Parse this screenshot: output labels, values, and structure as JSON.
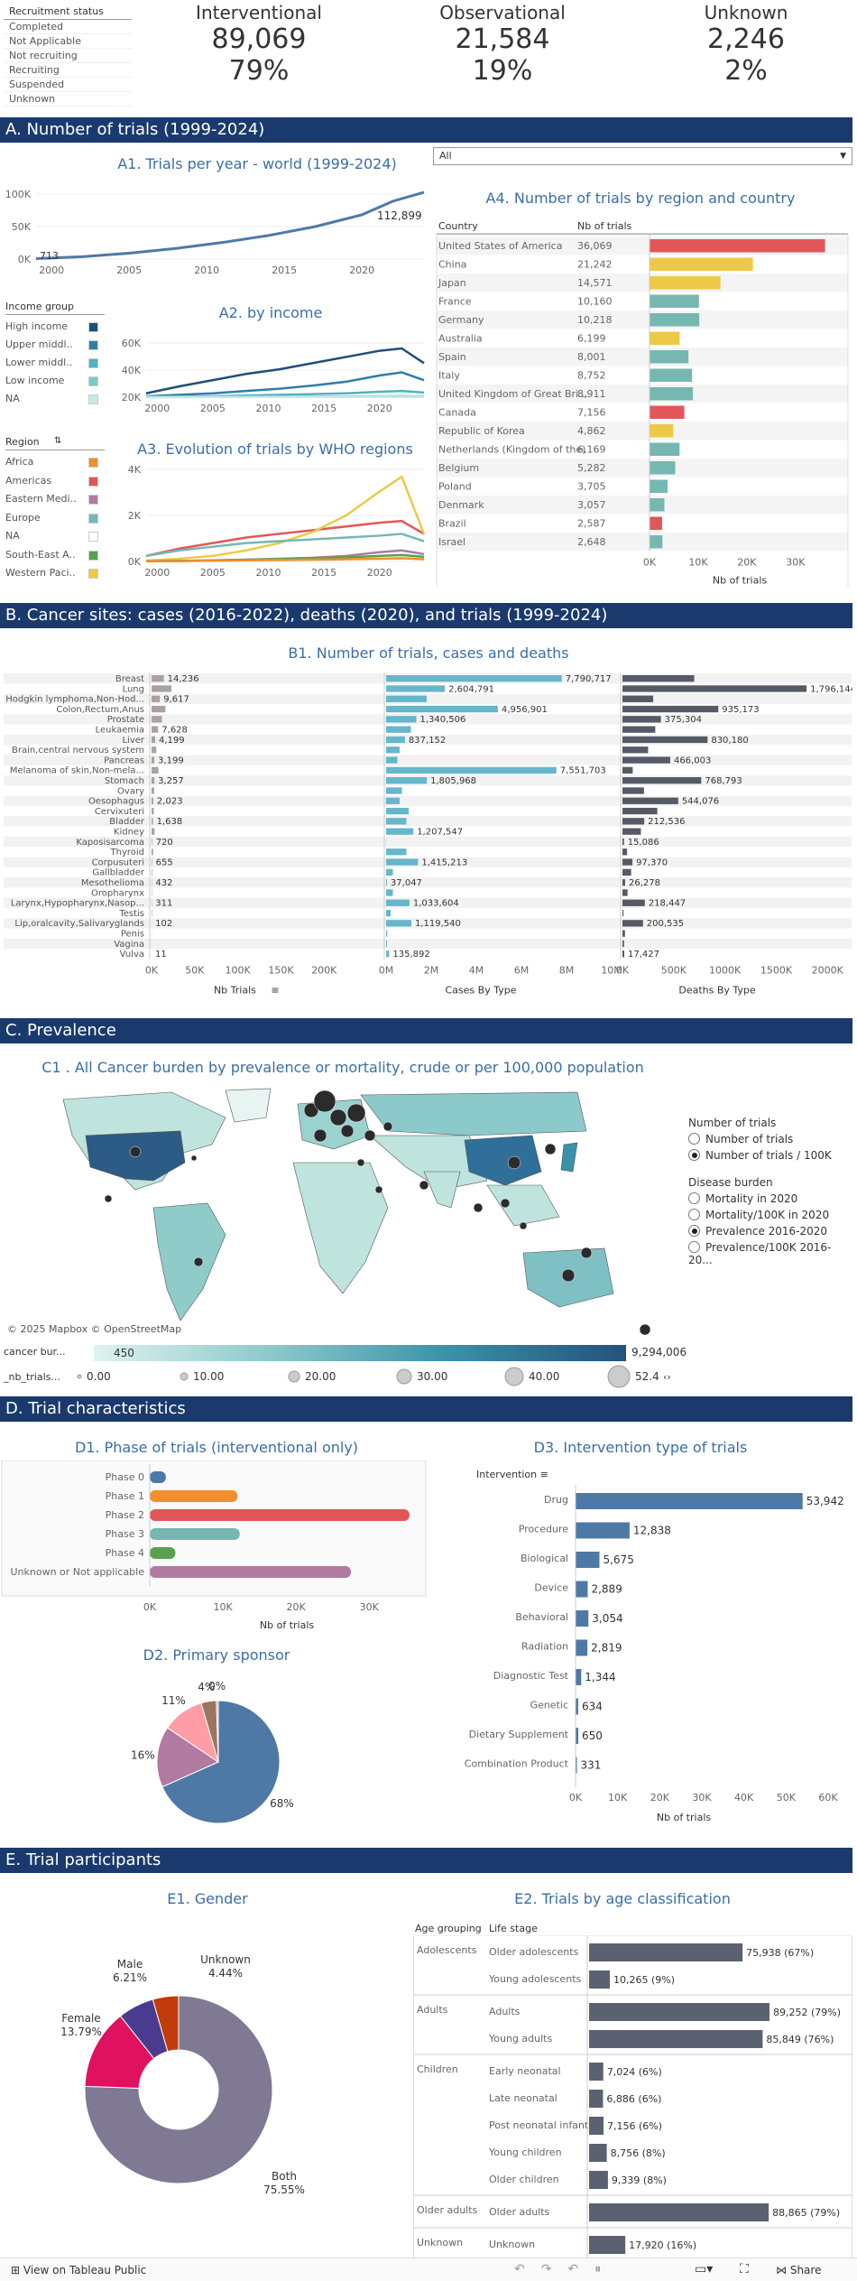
{
  "recruitment": {
    "header": "Recruitment status",
    "items": [
      "Completed",
      "Not Applicable",
      "Not recruiting",
      "Recruiting",
      "Suspended",
      "Unknown"
    ]
  },
  "kpis": [
    {
      "label": "Interventional",
      "count": "89,069",
      "pct": "79%"
    },
    {
      "label": "Observational",
      "count": "21,584",
      "pct": "19%"
    },
    {
      "label": "Unknown",
      "count": "2,246",
      "pct": "2%"
    }
  ],
  "sections": {
    "a": "A. Number of trials (1999-2024)",
    "b": "B. Cancer sites: cases (2016-2022), deaths (2020), and trials (1999-2024)",
    "c": "C. Prevalence",
    "d": "D. Trial characteristics",
    "e": "E. Trial participants"
  },
  "a1": {
    "title": "A1. Trials per year - world (1999-2024)",
    "yticks": [
      "100K",
      "50K",
      "0K"
    ],
    "xticks": [
      "2000",
      "2005",
      "2010",
      "2015",
      "2020"
    ],
    "start_label": "713",
    "end_label": "112,899",
    "chart_data": {
      "type": "line",
      "x": [
        1999,
        2002,
        2005,
        2008,
        2011,
        2014,
        2017,
        2020,
        2022,
        2024
      ],
      "values": [
        713,
        4000,
        10000,
        18000,
        28000,
        40000,
        55000,
        75000,
        98000,
        112899
      ],
      "ylim": [
        0,
        110000
      ]
    }
  },
  "a2": {
    "title": "A2. by income",
    "yticks": [
      "60K",
      "40K",
      "20K"
    ],
    "xticks": [
      "2000",
      "2005",
      "2010",
      "2015",
      "2020"
    ],
    "chart_data": {
      "type": "line",
      "x": [
        1999,
        2002,
        2005,
        2008,
        2011,
        2014,
        2017,
        2020,
        2022,
        2024
      ],
      "series": [
        {
          "name": "High income",
          "color": "#1f4e79",
          "values": [
            5000,
            14000,
            22000,
            30000,
            36000,
            44000,
            52000,
            60000,
            63000,
            44000
          ]
        },
        {
          "name": "Upper middl..",
          "color": "#2e7fa8",
          "values": [
            1000,
            3000,
            5000,
            8000,
            11000,
            15000,
            20000,
            28000,
            32000,
            22000
          ]
        },
        {
          "name": "Lower middl..",
          "color": "#4fb3c0",
          "values": [
            200,
            600,
            1200,
            2000,
            3000,
            4000,
            5000,
            7000,
            8000,
            6000
          ]
        },
        {
          "name": "Low income",
          "color": "#7cc7c9",
          "values": [
            100,
            200,
            300,
            400,
            600,
            700,
            900,
            1100,
            1300,
            900
          ]
        },
        {
          "name": "NA",
          "color": "#c9e8e6",
          "values": [
            50,
            100,
            150,
            200,
            250,
            300,
            350,
            400,
            450,
            300
          ]
        }
      ],
      "ylim": [
        0,
        70000
      ]
    }
  },
  "income_legend": {
    "title": "Income group",
    "items": [
      {
        "name": "High income",
        "color": "#1f4e79"
      },
      {
        "name": "Upper middl..",
        "color": "#2e7fa8"
      },
      {
        "name": "Lower middl..",
        "color": "#4fb3c0"
      },
      {
        "name": "Low income",
        "color": "#7cc7c9"
      },
      {
        "name": "NA",
        "color": "#c9e8e6"
      }
    ]
  },
  "a3": {
    "title": "A3. Evolution of trials by WHO regions",
    "yticks": [
      "4K",
      "2K",
      "0K"
    ],
    "xticks": [
      "2000",
      "2005",
      "2010",
      "2015",
      "2020"
    ],
    "chart_data": {
      "type": "line",
      "x": [
        1999,
        2002,
        2005,
        2008,
        2011,
        2014,
        2017,
        2020,
        2022,
        2024
      ],
      "series": [
        {
          "name": "Americas",
          "color": "#e15759",
          "values": [
            300,
            700,
            1000,
            1300,
            1500,
            1700,
            1900,
            2100,
            2200,
            1500
          ]
        },
        {
          "name": "Western Paci..",
          "color": "#edc948",
          "values": [
            50,
            150,
            300,
            600,
            1000,
            1600,
            2500,
            3800,
            4600,
            1500
          ]
        },
        {
          "name": "Europe",
          "color": "#76b7b2",
          "values": [
            300,
            600,
            800,
            1000,
            1100,
            1200,
            1300,
            1400,
            1500,
            1100
          ]
        },
        {
          "name": "Eastern Medi..",
          "color": "#b07aa1",
          "values": [
            10,
            30,
            60,
            100,
            150,
            200,
            300,
            500,
            600,
            400
          ]
        },
        {
          "name": "South-East A..",
          "color": "#59a14f",
          "values": [
            10,
            30,
            50,
            90,
            130,
            170,
            220,
            300,
            350,
            250
          ]
        },
        {
          "name": "Africa",
          "color": "#f28e2b",
          "values": [
            5,
            20,
            40,
            60,
            80,
            100,
            120,
            150,
            170,
            120
          ]
        }
      ],
      "ylim": [
        0,
        5000
      ]
    }
  },
  "region_legend": {
    "title": "Region",
    "items": [
      {
        "name": "Africa",
        "color": "#f28e2b"
      },
      {
        "name": "Americas",
        "color": "#e15759"
      },
      {
        "name": "Eastern Medi..",
        "color": "#b07aa1"
      },
      {
        "name": "Europe",
        "color": "#76b7b2"
      },
      {
        "name": "NA",
        "color": "#ffffff"
      },
      {
        "name": "South-East A..",
        "color": "#59a14f"
      },
      {
        "name": "Western Paci..",
        "color": "#edc948"
      }
    ]
  },
  "a4": {
    "filter": "All",
    "title": "A4. Number of trials by region and country",
    "col_country": "Country",
    "col_nb": "Nb of trials",
    "xlabel": "Nb of trials",
    "xticks": [
      "0K",
      "10K",
      "20K",
      "30K"
    ],
    "chart_data": {
      "type": "bar",
      "categories": [
        "United States of America",
        "China",
        "Japan",
        "France",
        "Germany",
        "Australia",
        "Spain",
        "Italy",
        "United Kingdom of Great Bri...",
        "Canada",
        "Republic of Korea",
        "Netherlands (Kingdom of the)",
        "Belgium",
        "Poland",
        "Denmark",
        "Brazil",
        "Israel"
      ],
      "values": [
        36069,
        21242,
        14571,
        10160,
        10218,
        6199,
        8001,
        8752,
        8911,
        7156,
        4862,
        6169,
        5282,
        3705,
        3057,
        2587,
        2648
      ],
      "labels": [
        "36,069",
        "21,242",
        "14,571",
        "10,160",
        "10,218",
        "6,199",
        "8,001",
        "8,752",
        "8,911",
        "7,156",
        "4,862",
        "6,169",
        "5,282",
        "3,705",
        "3,057",
        "2,587",
        "2,648"
      ],
      "colors": [
        "#e15759",
        "#edc948",
        "#edc948",
        "#76b7b2",
        "#76b7b2",
        "#edc948",
        "#76b7b2",
        "#76b7b2",
        "#76b7b2",
        "#e15759",
        "#edc948",
        "#76b7b2",
        "#76b7b2",
        "#76b7b2",
        "#76b7b2",
        "#e15759",
        "#76b7b2"
      ],
      "xlim": [
        0,
        38000
      ]
    }
  },
  "b1": {
    "title": "B1. Number of trials, cases and deaths",
    "xl1": "Nb Trials",
    "xl2": "Cases By Type",
    "xl3": "Deaths By Type",
    "xt1": [
      "0K",
      "50K",
      "100K",
      "150K",
      "200K"
    ],
    "xt2": [
      "0M",
      "2M",
      "4M",
      "6M",
      "8M",
      "10M"
    ],
    "xt3": [
      "0K",
      "500K",
      "1000K",
      "1500K",
      "2000K"
    ],
    "chart_data": {
      "type": "bar",
      "categories": [
        "Breast",
        "Lung",
        "Hodgkin lymphoma,Non-Hod...",
        "Colon,Rectum,Anus",
        "Prostate",
        "Leukaemia",
        "Liver",
        "Brain,central nervous system",
        "Pancreas",
        "Melanoma of skin,Non-mela...",
        "Stomach",
        "Ovary",
        "Oesophagus",
        "Cervixuteri",
        "Bladder",
        "Kidney",
        "Kaposisarcoma",
        "Thyroid",
        "Corpusuteri",
        "Gallbladder",
        "Mesothelioma",
        "Oropharynx",
        "Larynx,Hypopharynx,Nasop...",
        "Testis",
        "Lip,oralcavity,Salivaryglands",
        "Penis",
        "Vagina",
        "Vulva"
      ],
      "trials": [
        14236,
        23000,
        9617,
        16000,
        12000,
        7628,
        4199,
        5500,
        3199,
        8000,
        3257,
        3000,
        2023,
        2500,
        1638,
        3500,
        720,
        1800,
        655,
        800,
        432,
        500,
        311,
        600,
        102,
        150,
        80,
        11
      ],
      "trials_labels": [
        "14,236",
        "",
        "9,617",
        "",
        "",
        "7,628",
        "4,199",
        "",
        "3,199",
        "",
        "3,257",
        "",
        "2,023",
        "",
        "1,638",
        "",
        "720",
        "",
        "655",
        "",
        "432",
        "",
        "311",
        "",
        "102",
        "",
        "",
        "11"
      ],
      "cases": [
        7790717,
        2604791,
        1800000,
        4956901,
        1340506,
        1100000,
        837152,
        600000,
        500000,
        7551703,
        1805968,
        700000,
        600000,
        1000000,
        900000,
        1207547,
        10000,
        900000,
        1415213,
        300000,
        37047,
        300000,
        1033604,
        200000,
        1119540,
        50000,
        40000,
        135892
      ],
      "cases_labels": [
        "7,790,717",
        "2,604,791",
        "",
        "4,956,901",
        "1,340,506",
        "",
        "837,152",
        "",
        "",
        "7,551,703",
        "1,805,968",
        "",
        "",
        "",
        "",
        "1,207,547",
        "",
        "",
        "1,415,213",
        "",
        "37,047",
        "",
        "1,033,604",
        "",
        "1,119,540",
        "",
        "",
        "135,892"
      ],
      "deaths": [
        700000,
        1796144,
        300000,
        935173,
        375304,
        320000,
        830180,
        250000,
        466003,
        100000,
        768793,
        210000,
        544076,
        340000,
        212536,
        180000,
        15086,
        45000,
        97370,
        85000,
        26278,
        50000,
        218447,
        10000,
        200535,
        25000,
        15000,
        17427
      ],
      "deaths_labels": [
        "",
        "1,796,144",
        "",
        "935,173",
        "375,304",
        "",
        "830,180",
        "",
        "466,003",
        "",
        "768,793",
        "",
        "544,076",
        "",
        "212,536",
        "",
        "15,086",
        "",
        "97,370",
        "",
        "26,278",
        "",
        "218,447",
        "",
        "200,535",
        "",
        "",
        "17,427"
      ]
    }
  },
  "c1": {
    "title": "C1 .  All Cancer burden by prevalence or mortality, crude or per 100,000 population",
    "attribution": "© 2025 Mapbox  © OpenStreetMap",
    "color_label": "cancer bur...",
    "color_min": "450",
    "color_max": "9,294,006",
    "size_label": "_nb_trials...",
    "size_ticks": [
      "0.00",
      "10.00",
      "20.00",
      "30.00",
      "40.00",
      "52.4"
    ],
    "nb_title": "Number of trials",
    "nb_options": [
      "Number of trials",
      "Number of trials / 100K"
    ],
    "nb_selected": 1,
    "db_title": "Disease burden",
    "db_options": [
      "Mortality in 2020",
      "Mortality/100K in 2020",
      "Prevalence 2016-2020",
      "Prevalence/100K 2016-20..."
    ],
    "db_selected": 2
  },
  "d1": {
    "title": "D1. Phase of trials (interventional only)",
    "xlabel": "Nb of trials",
    "xticks": [
      "0K",
      "10K",
      "20K",
      "30K"
    ],
    "chart_data": {
      "type": "bar",
      "categories": [
        "Phase 0",
        "Phase 1",
        "Phase 2",
        "Phase 3",
        "Phase 4",
        "Unknown or Not applicable"
      ],
      "values": [
        2200,
        12000,
        35500,
        12300,
        3500,
        27500
      ],
      "colors": [
        "#4e79a7",
        "#f28e2b",
        "#e15759",
        "#76b7b2",
        "#59a14f",
        "#b07aa1"
      ],
      "xlim": [
        0,
        37000
      ]
    }
  },
  "d2": {
    "title": "D2. Primary sponsor",
    "chart_data": {
      "type": "pie",
      "labels": [
        "68%",
        "16%",
        "11%",
        "4%",
        "0%"
      ],
      "values": [
        68,
        16,
        11,
        4,
        0.5
      ],
      "colors": [
        "#4e79a7",
        "#b07aa1",
        "#ff9da7",
        "#9c755f",
        "#bab0ac"
      ]
    }
  },
  "d3": {
    "title": "D3. Intervention type of trials",
    "header": "Intervention",
    "xlabel": "Nb of trials",
    "xticks": [
      "0K",
      "10K",
      "20K",
      "30K",
      "40K",
      "50K",
      "60K"
    ],
    "chart_data": {
      "type": "bar",
      "categories": [
        "Drug",
        "Procedure",
        "Biological",
        "Device",
        "Behavioral",
        "Radiation",
        "Diagnostic Test",
        "Genetic",
        "Dietary Supplement",
        "Combination Product"
      ],
      "values": [
        53942,
        12838,
        5675,
        2889,
        3054,
        2819,
        1344,
        634,
        650,
        331
      ],
      "labels": [
        "53,942",
        "12,838",
        "5,675",
        "2,889",
        "3,054",
        "2,819",
        "1,344",
        "634",
        "650",
        "331"
      ],
      "xlim": [
        0,
        60000
      ]
    }
  },
  "e1": {
    "title": "E1. Gender",
    "chart_data": {
      "type": "pie",
      "labels": [
        "Both\n75.55%",
        "Female\n13.79%",
        "Male\n6.21%",
        "Unknown\n4.44%"
      ],
      "values": [
        75.55,
        13.79,
        6.21,
        4.44
      ],
      "colors": [
        "#7f7994",
        "#e0115f",
        "#4b3b8f",
        "#c23b0a"
      ]
    },
    "label_both": [
      "Both",
      "75.55%"
    ],
    "label_female": [
      "Female",
      "13.79%"
    ],
    "label_male": [
      "Male",
      "6.21%"
    ],
    "label_unknown": [
      "Unknown",
      "4.44%"
    ]
  },
  "e2": {
    "title": "E2. Trials by age classification",
    "col1": "Age grouping",
    "col2": "Life stage",
    "groups": [
      {
        "name": "Adolescents",
        "rows": [
          {
            "stage": "Older adolescents",
            "v": 75938,
            "lbl": "75,938 (67%)"
          },
          {
            "stage": "Young adolescents",
            "v": 10265,
            "lbl": "10,265 (9%)"
          }
        ]
      },
      {
        "name": "Adults",
        "rows": [
          {
            "stage": "Adults",
            "v": 89252,
            "lbl": "89,252 (79%)"
          },
          {
            "stage": "Young adults",
            "v": 85849,
            "lbl": "85,849 (76%)"
          }
        ]
      },
      {
        "name": "Children",
        "rows": [
          {
            "stage": "Early neonatal",
            "v": 7024,
            "lbl": "7,024 (6%)"
          },
          {
            "stage": "Late neonatal",
            "v": 6886,
            "lbl": "6,886 (6%)"
          },
          {
            "stage": "Post neonatal infants",
            "v": 7156,
            "lbl": "7,156 (6%)"
          },
          {
            "stage": "Young children",
            "v": 8756,
            "lbl": "8,756 (8%)"
          },
          {
            "stage": "Older children",
            "v": 9339,
            "lbl": "9,339 (8%)"
          }
        ]
      },
      {
        "name": "Older adults",
        "rows": [
          {
            "stage": "Older adults",
            "v": 88865,
            "lbl": "88,865 (79%)"
          }
        ]
      },
      {
        "name": "Unknown",
        "rows": [
          {
            "stage": "Unknown",
            "v": 17920,
            "lbl": "17,920 (16%)"
          }
        ]
      }
    ],
    "vmax": 89252
  },
  "footer": {
    "view": "View on Tableau Public",
    "share": "Share"
  }
}
